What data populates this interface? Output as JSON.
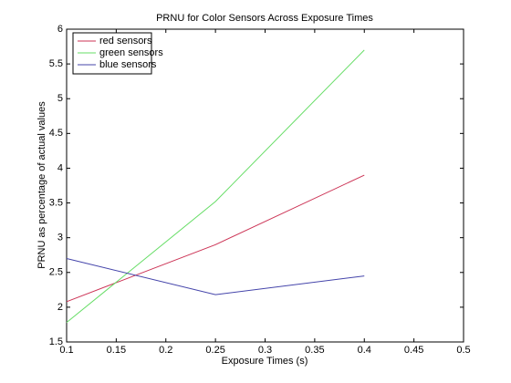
{
  "chart_data": {
    "type": "line",
    "title": "PRNU for Color Sensors Across Exposure Times",
    "x_label": "Exposure Times (s)",
    "y_label": "PRNU as percentage of actual values",
    "x": [
      0.1,
      0.25,
      0.4
    ],
    "series": [
      {
        "name": "red sensors",
        "color": "#cc3355",
        "values": [
          2.08,
          2.9,
          3.9
        ]
      },
      {
        "name": "green sensors",
        "color": "#66dd66",
        "values": [
          1.78,
          3.52,
          5.7
        ]
      },
      {
        "name": "blue sensors",
        "color": "#4444aa",
        "values": [
          2.7,
          2.18,
          2.45
        ]
      }
    ],
    "xlim": [
      0.1,
      0.5
    ],
    "xticks": [
      0.1,
      0.15,
      0.2,
      0.25,
      0.3,
      0.35,
      0.4,
      0.45,
      0.5
    ],
    "ylim": [
      1.5,
      6
    ],
    "yticks": [
      1.5,
      2,
      2.5,
      3,
      3.5,
      4,
      4.5,
      5,
      5.5,
      6
    ],
    "grid": false,
    "legend": "top-left"
  }
}
